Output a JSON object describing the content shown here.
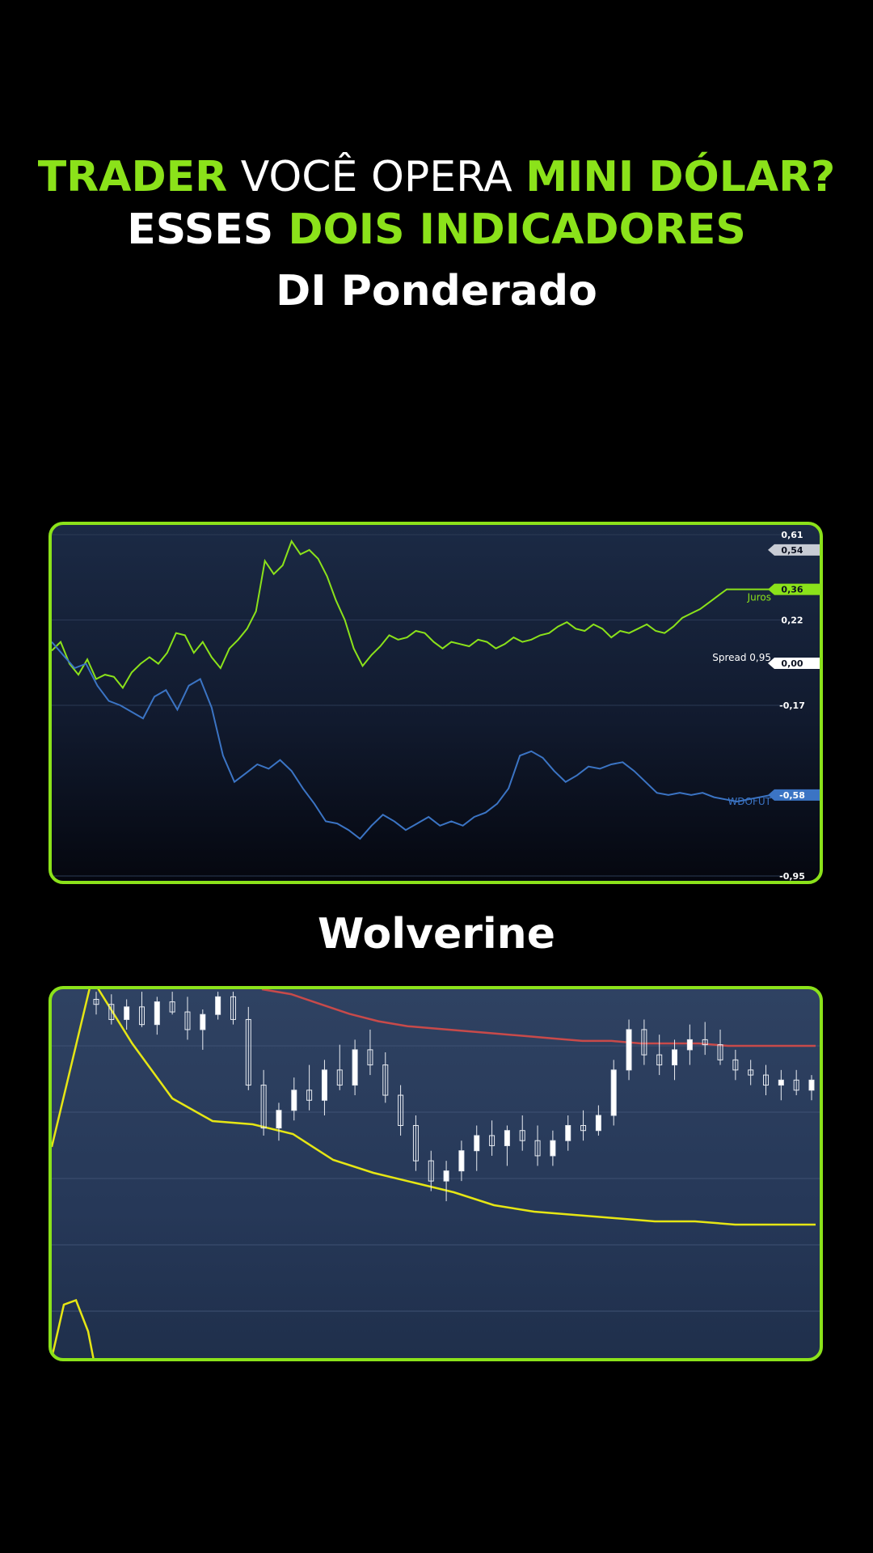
{
  "headline": {
    "line1": {
      "trader": "TRADER",
      "middle": " VOCÊ OPERA ",
      "instrument": "MINI DÓLAR?"
    },
    "line2": {
      "esses": "ESSES ",
      "rest": "DOIS INDICADORES"
    }
  },
  "colors": {
    "accent": "#8be21a",
    "juros": "#8be21a",
    "wdofut": "#3b74c4",
    "upper_band": "#c84a4a",
    "lower_band": "#e6e614"
  },
  "chart_data": [
    {
      "type": "line",
      "title": "DI Ponderado",
      "ylim": [
        -0.95,
        0.61
      ],
      "ticks": [
        "0,61",
        "0,22",
        "-0,17",
        "-0,95"
      ],
      "grid": true,
      "legend": "right",
      "series": [
        {
          "name": "Juros",
          "color": "#8be21a",
          "last_label": "0,36",
          "values": [
            0.08,
            0.12,
            0.02,
            -0.03,
            0.04,
            -0.05,
            -0.03,
            -0.04,
            -0.09,
            -0.02,
            0.02,
            0.05,
            0.02,
            0.07,
            0.16,
            0.15,
            0.07,
            0.12,
            0.05,
            0.0,
            0.09,
            0.13,
            0.18,
            0.26,
            0.49,
            0.43,
            0.47,
            0.58,
            0.52,
            0.54,
            0.5,
            0.42,
            0.31,
            0.22,
            0.09,
            0.01,
            0.06,
            0.1,
            0.15,
            0.13,
            0.14,
            0.17,
            0.16,
            0.12,
            0.09,
            0.12,
            0.11,
            0.1,
            0.13,
            0.12,
            0.09,
            0.11,
            0.14,
            0.12,
            0.13,
            0.15,
            0.16,
            0.19,
            0.21,
            0.18,
            0.17,
            0.2,
            0.18,
            0.14,
            0.17,
            0.16,
            0.18,
            0.2,
            0.17,
            0.16,
            0.19,
            0.23,
            0.25,
            0.27,
            0.3,
            0.33,
            0.36,
            0.36,
            0.36,
            0.36,
            0.36,
            0.36
          ]
        },
        {
          "name": "WDOFUT",
          "color": "#3b74c4",
          "last_label": "-0,58",
          "values": [
            0.12,
            0.06,
            0.0,
            0.02,
            -0.08,
            -0.15,
            -0.17,
            -0.2,
            -0.23,
            -0.13,
            -0.1,
            -0.19,
            -0.08,
            -0.05,
            -0.18,
            -0.4,
            -0.52,
            -0.48,
            -0.44,
            -0.46,
            -0.42,
            -0.47,
            -0.55,
            -0.62,
            -0.7,
            -0.71,
            -0.74,
            -0.78,
            -0.72,
            -0.67,
            -0.7,
            -0.74,
            -0.71,
            -0.68,
            -0.72,
            -0.7,
            -0.72,
            -0.68,
            -0.66,
            -0.62,
            -0.55,
            -0.4,
            -0.38,
            -0.41,
            -0.47,
            -0.52,
            -0.49,
            -0.45,
            -0.46,
            -0.44,
            -0.43,
            -0.47,
            -0.52,
            -0.57,
            -0.58,
            -0.57,
            -0.58,
            -0.57,
            -0.59,
            -0.6,
            -0.61,
            -0.6,
            -0.59,
            -0.58
          ]
        }
      ],
      "annotations": {
        "spread": "Spread 0,95",
        "zero": "0,00",
        "upper": "0,54"
      }
    },
    {
      "type": "candlestick",
      "title": "Wolverine",
      "ylim": [
        0,
        100
      ],
      "grid": true,
      "candles": [
        {
          "o": 96,
          "h": 99,
          "l": 90,
          "c": 94
        },
        {
          "o": 94,
          "h": 98,
          "l": 86,
          "c": 88
        },
        {
          "o": 88,
          "h": 96,
          "l": 84,
          "c": 93
        },
        {
          "o": 93,
          "h": 99,
          "l": 85,
          "c": 86
        },
        {
          "o": 86,
          "h": 97,
          "l": 82,
          "c": 95
        },
        {
          "o": 95,
          "h": 99,
          "l": 90,
          "c": 91
        },
        {
          "o": 91,
          "h": 97,
          "l": 80,
          "c": 84
        },
        {
          "o": 84,
          "h": 92,
          "l": 76,
          "c": 90
        },
        {
          "o": 90,
          "h": 99,
          "l": 88,
          "c": 97
        },
        {
          "o": 97,
          "h": 99,
          "l": 86,
          "c": 88
        },
        {
          "o": 88,
          "h": 93,
          "l": 60,
          "c": 62
        },
        {
          "o": 62,
          "h": 68,
          "l": 42,
          "c": 45
        },
        {
          "o": 45,
          "h": 55,
          "l": 40,
          "c": 52
        },
        {
          "o": 52,
          "h": 65,
          "l": 48,
          "c": 60
        },
        {
          "o": 60,
          "h": 70,
          "l": 52,
          "c": 56
        },
        {
          "o": 56,
          "h": 72,
          "l": 50,
          "c": 68
        },
        {
          "o": 68,
          "h": 78,
          "l": 60,
          "c": 62
        },
        {
          "o": 62,
          "h": 80,
          "l": 58,
          "c": 76
        },
        {
          "o": 76,
          "h": 84,
          "l": 66,
          "c": 70
        },
        {
          "o": 70,
          "h": 75,
          "l": 55,
          "c": 58
        },
        {
          "o": 58,
          "h": 62,
          "l": 42,
          "c": 46
        },
        {
          "o": 46,
          "h": 50,
          "l": 28,
          "c": 32
        },
        {
          "o": 32,
          "h": 36,
          "l": 20,
          "c": 24
        },
        {
          "o": 24,
          "h": 32,
          "l": 16,
          "c": 28
        },
        {
          "o": 28,
          "h": 40,
          "l": 24,
          "c": 36
        },
        {
          "o": 36,
          "h": 46,
          "l": 28,
          "c": 42
        },
        {
          "o": 42,
          "h": 48,
          "l": 34,
          "c": 38
        },
        {
          "o": 38,
          "h": 46,
          "l": 30,
          "c": 44
        },
        {
          "o": 44,
          "h": 50,
          "l": 36,
          "c": 40
        },
        {
          "o": 40,
          "h": 46,
          "l": 30,
          "c": 34
        },
        {
          "o": 34,
          "h": 44,
          "l": 30,
          "c": 40
        },
        {
          "o": 40,
          "h": 50,
          "l": 36,
          "c": 46
        },
        {
          "o": 46,
          "h": 52,
          "l": 40,
          "c": 44
        },
        {
          "o": 44,
          "h": 54,
          "l": 42,
          "c": 50
        },
        {
          "o": 50,
          "h": 72,
          "l": 46,
          "c": 68
        },
        {
          "o": 68,
          "h": 88,
          "l": 64,
          "c": 84
        },
        {
          "o": 84,
          "h": 88,
          "l": 70,
          "c": 74
        },
        {
          "o": 74,
          "h": 82,
          "l": 66,
          "c": 70
        },
        {
          "o": 70,
          "h": 80,
          "l": 64,
          "c": 76
        },
        {
          "o": 76,
          "h": 86,
          "l": 70,
          "c": 80
        },
        {
          "o": 80,
          "h": 87,
          "l": 74,
          "c": 78
        },
        {
          "o": 78,
          "h": 84,
          "l": 70,
          "c": 72
        },
        {
          "o": 72,
          "h": 76,
          "l": 64,
          "c": 68
        },
        {
          "o": 68,
          "h": 72,
          "l": 62,
          "c": 66
        },
        {
          "o": 66,
          "h": 70,
          "l": 58,
          "c": 62
        },
        {
          "o": 62,
          "h": 68,
          "l": 56,
          "c": 64
        },
        {
          "o": 64,
          "h": 68,
          "l": 58,
          "c": 60
        },
        {
          "o": 60,
          "h": 66,
          "l": 56,
          "c": 64
        }
      ],
      "bands": [
        {
          "name": "upper",
          "color": "#c84a4a",
          "values": [
            110,
            108,
            104,
            100,
            97,
            95,
            94,
            93,
            92,
            91,
            90,
            89,
            89,
            88,
            88,
            88,
            87,
            87,
            87,
            87
          ]
        },
        {
          "name": "lower",
          "color": "#e6e614",
          "values": [
            60,
            92,
            72,
            55,
            48,
            47,
            44,
            36,
            32,
            29,
            26,
            22,
            20,
            19,
            18,
            17,
            17,
            16,
            16,
            16
          ]
        },
        {
          "name": "lower2",
          "color": "#e6e614",
          "values": [
            0,
            12,
            13,
            6,
            -8
          ]
        }
      ]
    }
  ]
}
